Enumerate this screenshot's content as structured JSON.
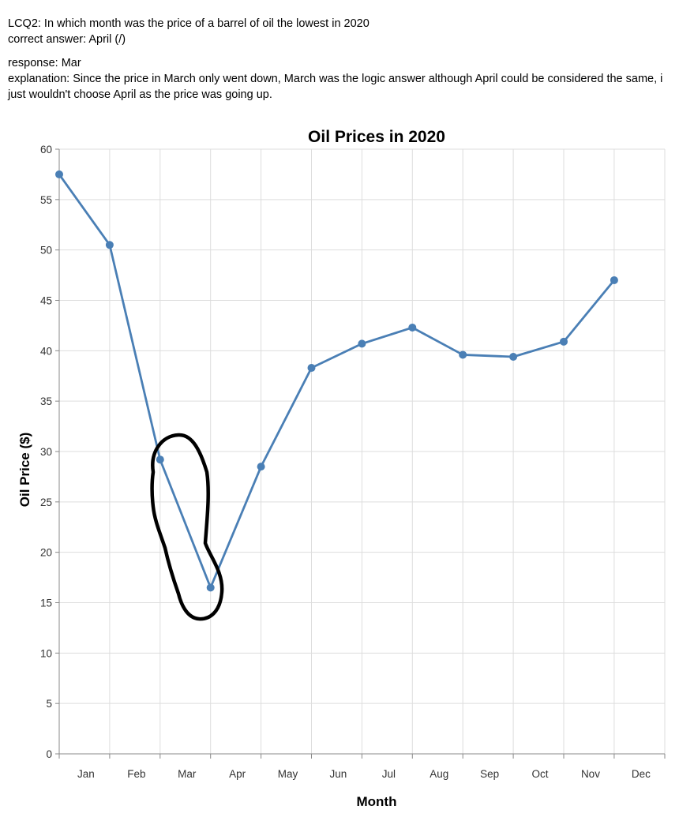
{
  "header": {
    "question": "LCQ2: In which month was the price of a barrel of oil the lowest in 2020",
    "correct_answer": "correct answer: April (/)",
    "response": "response: Mar",
    "explanation": "explanation: Since the price in March only went down, March was the logic answer although April could be considered the same, i just wouldn't choose April as the price was going up."
  },
  "colors": {
    "line": "#4a7fb5",
    "grid": "#dddddd",
    "axis": "#888888",
    "annotation": "#000000"
  },
  "chart_data": {
    "type": "line",
    "title": "Oil Prices in 2020",
    "xlabel": "Month",
    "ylabel": "Oil Price ($)",
    "categories": [
      "Jan",
      "Feb",
      "Mar",
      "Apr",
      "May",
      "Jun",
      "Jul",
      "Aug",
      "Sep",
      "Oct",
      "Nov",
      "Dec"
    ],
    "series": [
      {
        "values": [
          57.5,
          50.5,
          29.2,
          16.5,
          28.5,
          38.3,
          40.7,
          42.3,
          39.6,
          39.4,
          40.9,
          47.0
        ]
      }
    ],
    "ylim": [
      0,
      60
    ],
    "yticks": [
      0,
      5,
      10,
      15,
      20,
      25,
      30,
      35,
      40,
      45,
      50,
      55,
      60
    ],
    "grid": true,
    "annotation": "hand-drawn loop around Mar and Apr points"
  }
}
